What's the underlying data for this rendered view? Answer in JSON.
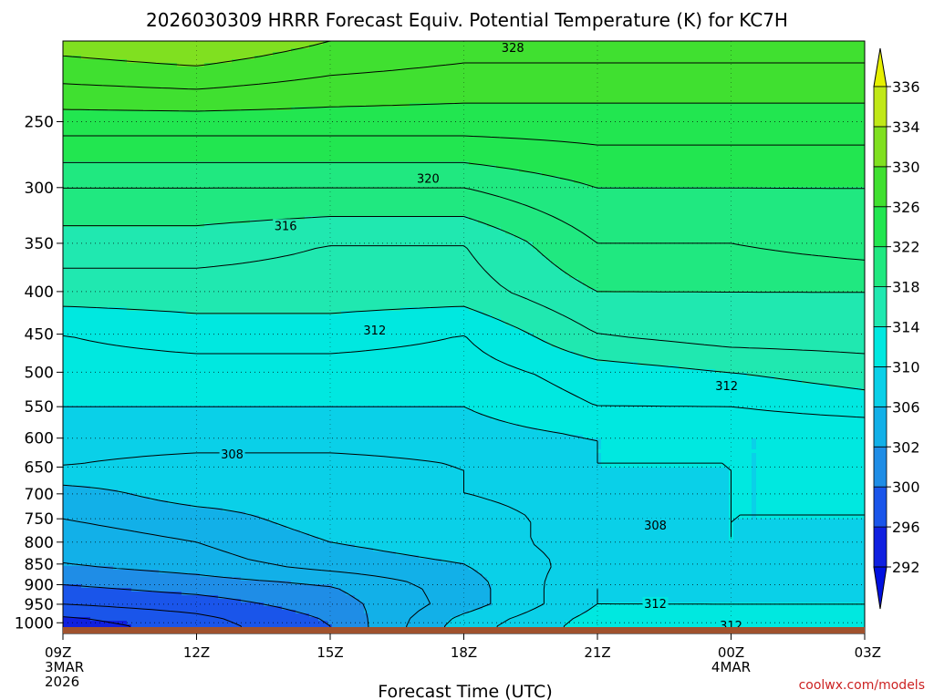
{
  "chart_data": {
    "type": "heatmap",
    "title": "2026030309 HRRR Forecast Equiv. Potential Temperature (K) for KC7H",
    "xlabel": "Forecast Time (UTC)",
    "ylabel": "",
    "credit": "coolwx.com/models",
    "x_range": [
      "09Z 3MAR 2026",
      "03Z 4MAR"
    ],
    "x_ticks": [
      {
        "label": "09Z",
        "sub1": "3MAR",
        "sub2": "2026",
        "hour": 0
      },
      {
        "label": "12Z",
        "sub1": "",
        "sub2": "",
        "hour": 3
      },
      {
        "label": "15Z",
        "sub1": "",
        "sub2": "",
        "hour": 6
      },
      {
        "label": "18Z",
        "sub1": "",
        "sub2": "",
        "hour": 9
      },
      {
        "label": "21Z",
        "sub1": "",
        "sub2": "",
        "hour": 12
      },
      {
        "label": "00Z",
        "sub1": "4MAR",
        "sub2": "",
        "hour": 15
      },
      {
        "label": "03Z",
        "sub1": "",
        "sub2": "",
        "hour": 18
      }
    ],
    "y_ticks": [
      250,
      300,
      350,
      400,
      450,
      500,
      550,
      600,
      650,
      700,
      750,
      800,
      850,
      900,
      950,
      1000
    ],
    "y_scale": "log-pressure",
    "y_range": [
      1030,
      200
    ],
    "grid": true,
    "colorbar": {
      "ticks": [
        292,
        296,
        300,
        302,
        306,
        310,
        314,
        318,
        322,
        326,
        330,
        334,
        336
      ],
      "colors": [
        "#1020e0",
        "#1a55ea",
        "#1f8de6",
        "#12b0e8",
        "#0ad0e8",
        "#00e8e0",
        "#20e8b0",
        "#20e880",
        "#22e650",
        "#40e030",
        "#80e020",
        "#c0e818"
      ],
      "below_color": "#0010e0",
      "above_color": "#e6f000"
    },
    "contour_labels": [
      {
        "text": "328",
        "hour": 10.1,
        "p": 204
      },
      {
        "text": "320",
        "hour": 8.2,
        "p": 293
      },
      {
        "text": "316",
        "hour": 5.0,
        "p": 334
      },
      {
        "text": "312",
        "hour": 7.0,
        "p": 446
      },
      {
        "text": "312",
        "hour": 14.9,
        "p": 520
      },
      {
        "text": "308",
        "hour": 3.8,
        "p": 628
      },
      {
        "text": "308",
        "hour": 13.3,
        "p": 765
      },
      {
        "text": "312",
        "hour": 13.3,
        "p": 950
      },
      {
        "text": "312",
        "hour": 15.0,
        "p": 1010
      }
    ],
    "field_samples": {
      "levels_hPa": [
        200,
        250,
        300,
        350,
        400,
        450,
        500,
        550,
        600,
        650,
        700,
        750,
        800,
        850,
        900,
        950,
        1000,
        1030
      ],
      "hours": [
        0,
        3,
        6,
        9,
        12,
        15,
        18
      ],
      "values_K": [
        [
          331,
          332,
          330,
          329,
          329,
          329,
          329
        ],
        [
          325,
          325,
          325,
          325,
          325,
          325,
          325
        ],
        [
          320,
          320,
          320,
          320,
          322,
          322,
          322
        ],
        [
          317,
          317,
          316,
          316,
          320,
          320,
          321
        ],
        [
          315,
          315,
          315,
          315,
          318,
          318,
          318
        ],
        [
          312,
          313,
          313,
          312,
          316,
          317,
          317
        ],
        [
          311,
          311,
          311,
          311,
          313,
          314,
          315
        ],
        [
          310,
          310,
          310,
          310,
          312,
          312,
          313
        ],
        [
          309,
          309,
          309,
          309,
          310,
          310,
          310
        ],
        [
          308,
          307,
          307,
          308,
          310,
          310,
          310
        ],
        [
          305,
          307,
          307,
          308,
          309,
          310,
          310
        ],
        [
          304,
          305,
          307,
          307,
          309,
          310,
          310
        ],
        [
          303,
          304,
          306,
          307,
          309,
          310,
          309
        ],
        [
          302,
          303,
          305,
          306,
          309,
          309,
          309
        ],
        [
          300,
          301,
          302,
          305,
          310,
          309,
          309
        ],
        [
          298,
          299,
          301,
          305,
          310,
          310,
          310
        ],
        [
          295,
          297,
          300,
          307,
          311,
          311,
          311
        ],
        [
          295,
          297,
          300,
          307,
          311,
          311,
          311
        ]
      ]
    }
  }
}
